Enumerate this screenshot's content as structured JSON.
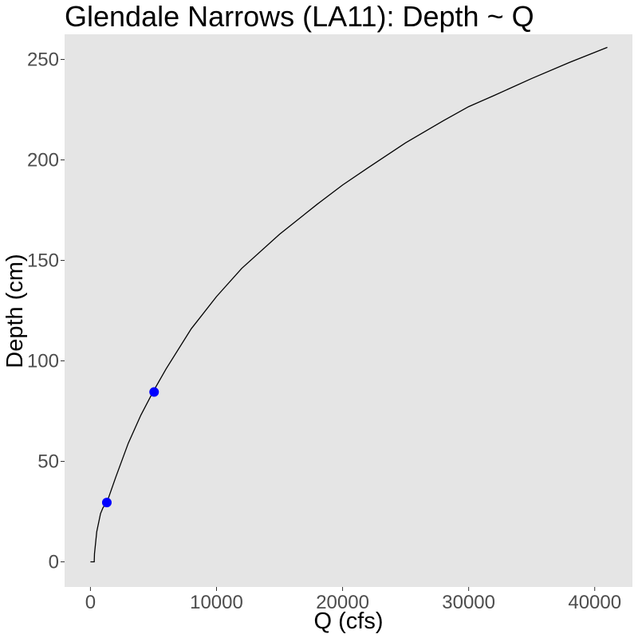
{
  "chart_data": {
    "type": "line",
    "title": "Glendale Narrows (LA11): Depth ~ Q",
    "xlabel": "Q (cfs)",
    "ylabel": "Depth (cm)",
    "xlim": [
      -2050,
      42990
    ],
    "ylim": [
      -12.5,
      262.5
    ],
    "xticks": [
      0,
      10000,
      20000,
      30000,
      40000
    ],
    "xtick_labels": [
      "0",
      "10000",
      "20000",
      "30000",
      "40000"
    ],
    "yticks": [
      0,
      50,
      100,
      150,
      200,
      250
    ],
    "ytick_labels": [
      "0",
      "50",
      "100",
      "150",
      "200",
      "250"
    ],
    "grid": false,
    "panel_background": "#e5e5e5",
    "series": [
      {
        "type": "line",
        "color": "#000000",
        "x": [
          0,
          300,
          320,
          500,
          800,
          1000,
          1300,
          2000,
          3000,
          4000,
          5000,
          6000,
          8000,
          10000,
          12000,
          15000,
          18000,
          20000,
          22000,
          25000,
          28000,
          30000,
          32000,
          35000,
          38000,
          41000
        ],
        "y": [
          0,
          0,
          4,
          15,
          24,
          27,
          29.5,
          42,
          59,
          73,
          85,
          96,
          116,
          132,
          146,
          163,
          178,
          187.5,
          196,
          208.5,
          219.5,
          226.5,
          232,
          240.5,
          248.5,
          256
        ]
      },
      {
        "type": "scatter",
        "color": "#0000ff",
        "x": [
          1300,
          5050
        ],
        "y": [
          29.5,
          84.5
        ]
      }
    ]
  }
}
